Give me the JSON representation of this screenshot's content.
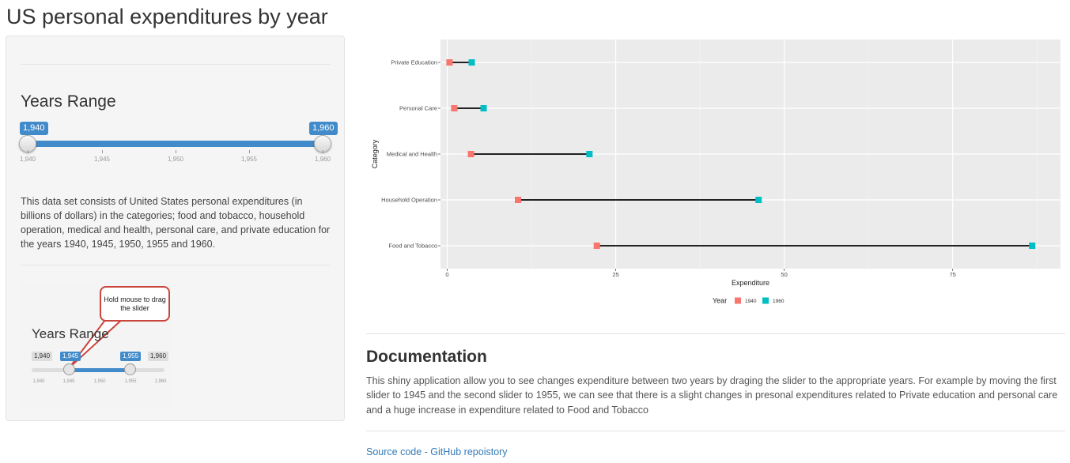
{
  "page": {
    "title": "US personal expenditures by year"
  },
  "sidebar": {
    "slider": {
      "label": "Years Range",
      "min": 1940,
      "max": 1960,
      "from": 1940,
      "to": 1960,
      "from_label": "1,940",
      "to_label": "1,960",
      "ticks": [
        "1,940",
        "1,945",
        "1,950",
        "1,955",
        "1,960"
      ],
      "accent_color": "#428bca"
    },
    "description": "This data set consists of United States personal expenditures (in billions of dollars) in the categories; food and tobacco, household operation, medical and health, personal care, and private education for the years 1940, 1945, 1950, 1955 and 1960.",
    "help_image": {
      "callout": "Hold mouse to drag the slider",
      "heading": "Years Range",
      "min_label": "1,940",
      "from_label": "1,945",
      "to_label": "1,955",
      "max_label": "1,960",
      "from": 1945,
      "to": 1955,
      "ticks": [
        "1,940",
        "1,945",
        "1,950",
        "1,955",
        "1,960"
      ]
    }
  },
  "chart_data": {
    "type": "dumbbell",
    "title": "",
    "xlabel": "Expenditure",
    "ylabel": "Category",
    "xlim": [
      -1,
      91
    ],
    "xticks": [
      0,
      25,
      50,
      75
    ],
    "grid": true,
    "legend": {
      "title": "Year",
      "position": "bottom"
    },
    "categories": [
      "Private Education",
      "Personal Care",
      "Medical and Health",
      "Household Operation",
      "Food and Tobacco"
    ],
    "series": [
      {
        "name": "1940",
        "color": "#f8766d",
        "values": [
          0.341,
          1.04,
          3.53,
          10.5,
          22.2
        ]
      },
      {
        "name": "1960",
        "color": "#00bfc4",
        "values": [
          3.64,
          5.4,
          21.1,
          46.2,
          86.8
        ]
      }
    ]
  },
  "documentation": {
    "heading": "Documentation",
    "text": "This shiny application allow you to see changes expenditure between two years by draging the slider to the appropriate years. For example by moving the first slider to 1945 and the second slider to 1955, we can see that there is a slight changes in presonal expenditures related to Private education and personal care and a huge increase in expenditure related to Food and Tobacco",
    "link_text": "Source code - GitHub repoistory"
  }
}
